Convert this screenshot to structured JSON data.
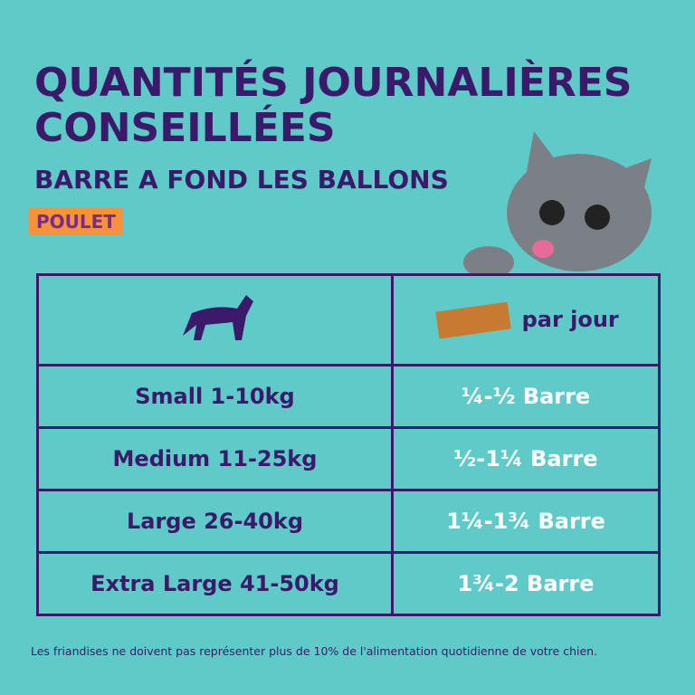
{
  "header": {
    "title_line1": "QUANTITÉS JOURNALIÈRES",
    "title_line2": "CONSEILLÉES",
    "subtitle": "BARRE A FOND LES BALLONS",
    "flavor": "POULET"
  },
  "table": {
    "header": {
      "col2": "par jour"
    },
    "rows": [
      [
        "Small 1-10kg",
        "¼-½ Barre"
      ],
      [
        "Medium 11-25kg",
        "½-1¼ Barre"
      ],
      [
        "Large 26-40kg",
        "1¼-1¾ Barre"
      ],
      [
        "Extra Large 41-50kg",
        "1¾-2 Barre"
      ]
    ]
  },
  "footnote": "Les friandises ne doivent pas représenter plus de 10% de l'alimentation quotidienne de votre chien."
}
